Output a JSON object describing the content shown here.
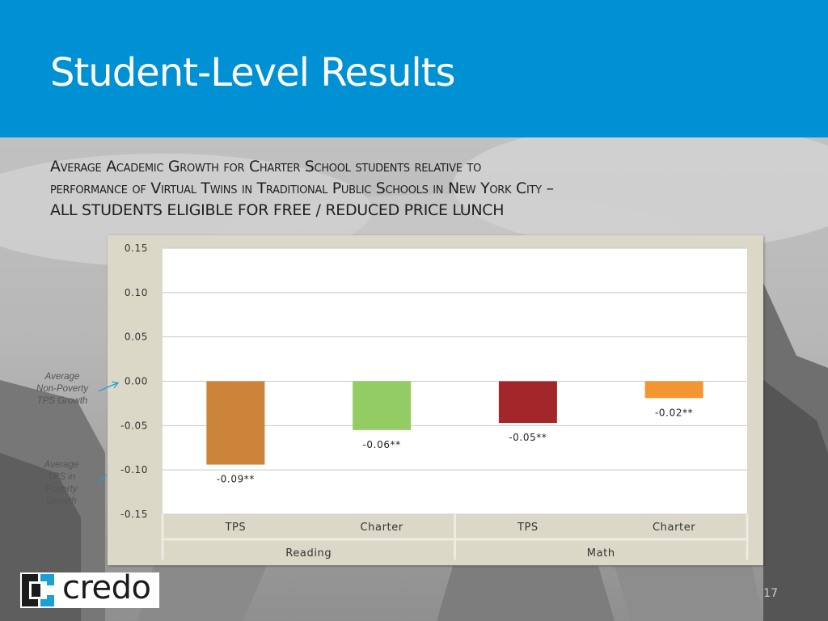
{
  "slide": {
    "title": "Student-Level Results",
    "subtitle_lines": [
      "Average Academic Growth for Charter School students relative to",
      "performance of Virtual Twins in Traditional Public Schools in New York City –",
      "ALL STUDENTS ELIGIBLE FOR FREE / REDUCED PRICE LUNCH"
    ],
    "annotations": {
      "non_poverty": [
        "Average",
        "Non-Poverty",
        "TPS Growth"
      ],
      "tps_poverty": [
        "Average",
        "TPS in",
        "Poverty",
        "Growth"
      ]
    },
    "logo_text": "credo",
    "page_number": "17"
  },
  "chart_data": {
    "type": "bar",
    "title": "",
    "xlabel": "",
    "ylabel": "",
    "ylim": [
      -0.15,
      0.15
    ],
    "yticks": [
      "0.15",
      "0.10",
      "0.05",
      "0.00",
      "-0.05",
      "-0.10",
      "-0.15"
    ],
    "grid": true,
    "legend": "none",
    "groups": [
      "Reading",
      "Math"
    ],
    "categories": [
      {
        "label": "TPS",
        "group": "Reading",
        "value": -0.094,
        "data_label": "-0.09**",
        "color": "#cc843a"
      },
      {
        "label": "Charter",
        "group": "Reading",
        "value": -0.055,
        "data_label": "-0.06**",
        "color": "#93cc62"
      },
      {
        "label": "TPS",
        "group": "Math",
        "value": -0.047,
        "data_label": "-0.05**",
        "color": "#a3262a"
      },
      {
        "label": "Charter",
        "group": "Math",
        "value": -0.019,
        "data_label": "-0.02**",
        "color": "#f39631"
      }
    ],
    "colors": {
      "frame": "#dcd8c7",
      "plot_area": "#ffffff",
      "grid": "#c8c8c8",
      "header": "#0090d4"
    }
  }
}
